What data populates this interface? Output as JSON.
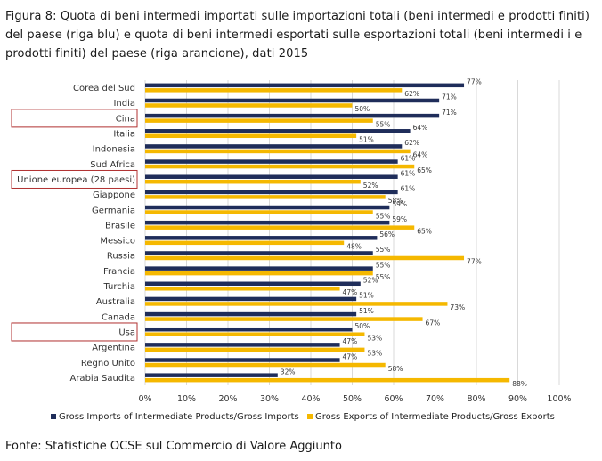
{
  "caption": "Figura 8: Quota di beni intermedi importati sulle importazioni totali (beni intermedi e prodotti finiti) del paese (riga blu) e quota di beni intermedi esportati sulle esportazioni totali (beni intermedi i e prodotti finiti) del paese (riga arancione), dati 2015",
  "source": "Fonte: Statistiche OCSE sul Commercio di Valore Aggiunto",
  "chart_data": {
    "type": "bar",
    "orientation": "horizontal",
    "categories": [
      "Corea del Sud",
      "India",
      "Cina",
      "Italia",
      "Indonesia",
      "Sud Africa",
      "Unione europea (28 paesi)",
      "Giappone",
      "Germania",
      "Brasile",
      "Messico",
      "Russia",
      "Francia",
      "Turchia",
      "Australia",
      "Canada",
      "Usa",
      "Argentina",
      "Regno Unito",
      "Arabia Saudita"
    ],
    "highlighted": [
      "Cina",
      "Unione europea (28 paesi)",
      "Usa"
    ],
    "series": [
      {
        "name": "Gross Imports of Intermediate Products/Gross Imports",
        "color": "#1f2d5a",
        "values": [
          77,
          71,
          71,
          64,
          62,
          61,
          61,
          61,
          59,
          59,
          56,
          55,
          55,
          52,
          51,
          51,
          50,
          47,
          47,
          32
        ]
      },
      {
        "name": "Gross Exports of Intermediate Products/Gross Exports",
        "color": "#f5b800",
        "values": [
          62,
          50,
          55,
          51,
          64,
          65,
          52,
          58,
          55,
          65,
          48,
          77,
          55,
          47,
          73,
          67,
          53,
          53,
          58,
          88
        ]
      }
    ],
    "xlim": [
      0,
      100
    ],
    "xticks": [
      "0%",
      "10%",
      "20%",
      "30%",
      "40%",
      "50%",
      "60%",
      "70%",
      "80%",
      "90%",
      "100%"
    ],
    "grid": "vertical",
    "legend": "bottom"
  }
}
